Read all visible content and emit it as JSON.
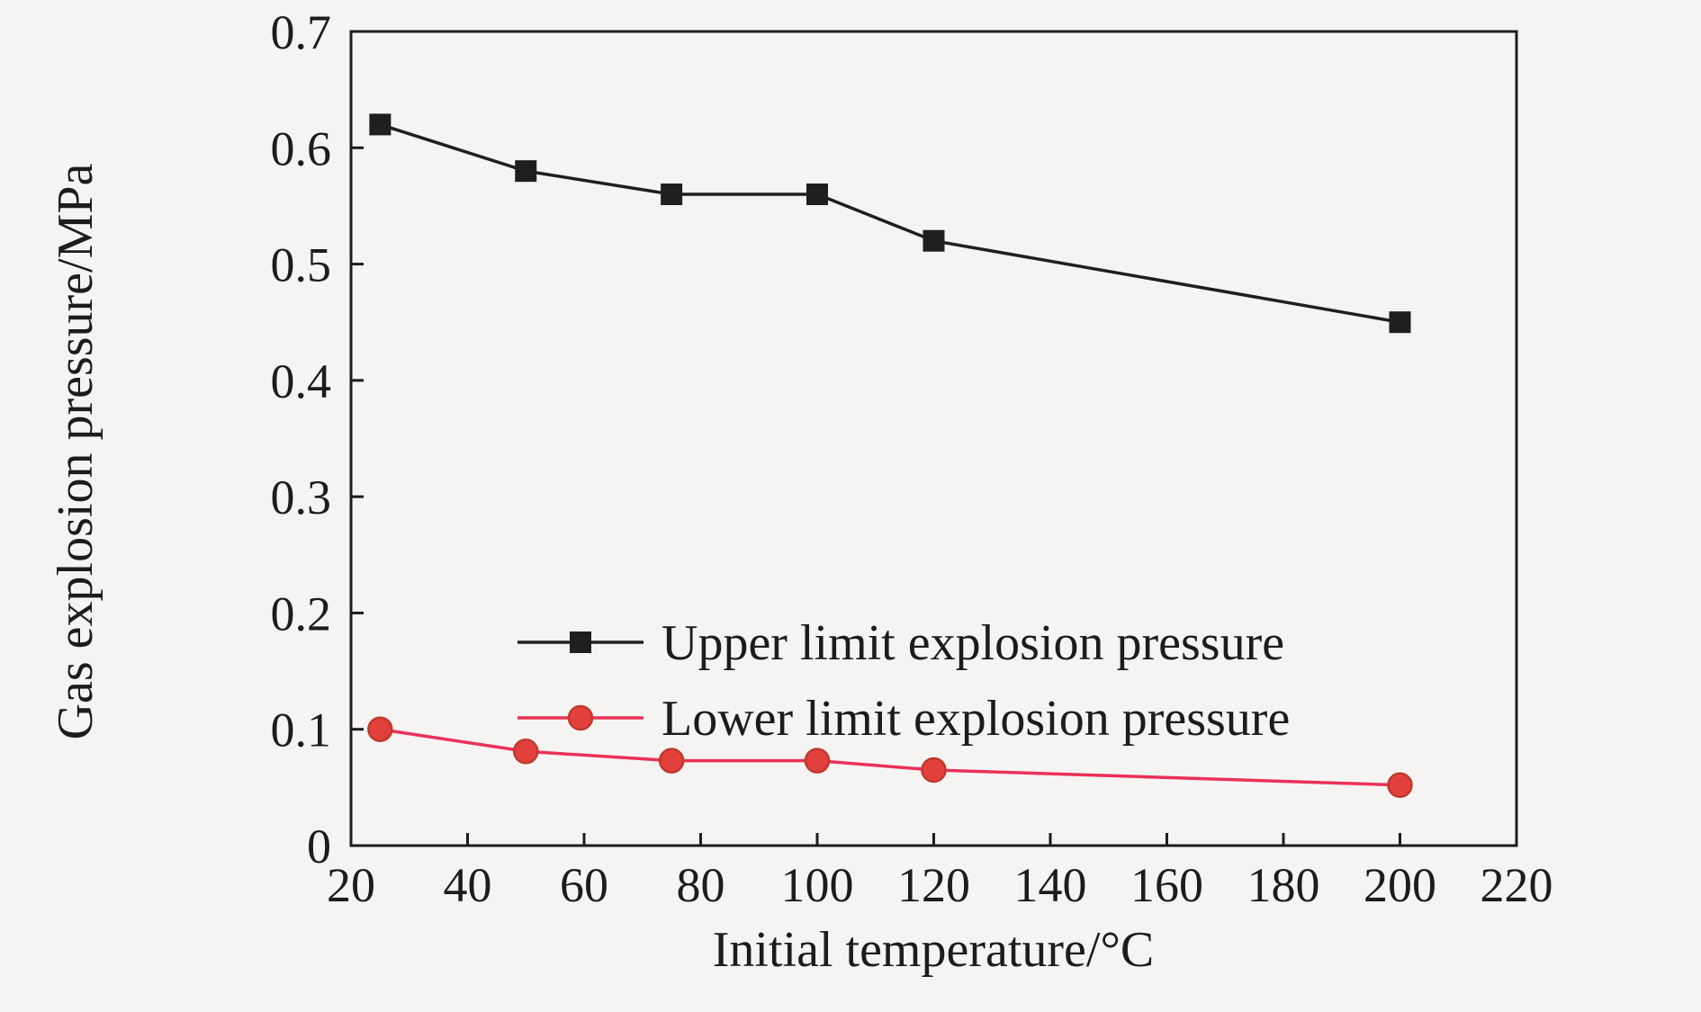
{
  "chart_data": {
    "type": "line",
    "title": "",
    "xlabel": "Initial temperature/°C",
    "ylabel": "Gas explosion pressure/MPa",
    "xlim": [
      20,
      220
    ],
    "ylim": [
      0,
      0.7
    ],
    "xticks": [
      20,
      40,
      60,
      80,
      100,
      120,
      140,
      160,
      180,
      200,
      220
    ],
    "yticks": [
      0,
      0.1,
      0.2,
      0.3,
      0.4,
      0.5,
      0.6,
      0.7
    ],
    "grid": false,
    "legend_position": "inside-center-left",
    "background": "#f6f4f3",
    "axis_color": "#1c1c1c",
    "x": [
      25,
      50,
      75,
      100,
      120,
      200
    ],
    "series": [
      {
        "name": "Upper limit explosion pressure",
        "marker": "square",
        "line_color": "#1f1f1f",
        "marker_fill": "#1f1f1f",
        "marker_stroke": "#1f1f1f",
        "values": [
          0.62,
          0.58,
          0.56,
          0.56,
          0.52,
          0.45
        ]
      },
      {
        "name": "Lower limit explosion pressure",
        "marker": "circle",
        "line_color": "#ea3156",
        "marker_fill": "#e2403d",
        "marker_stroke": "#c0392b",
        "values": [
          0.1,
          0.081,
          0.073,
          0.073,
          0.065,
          0.052
        ]
      }
    ]
  }
}
